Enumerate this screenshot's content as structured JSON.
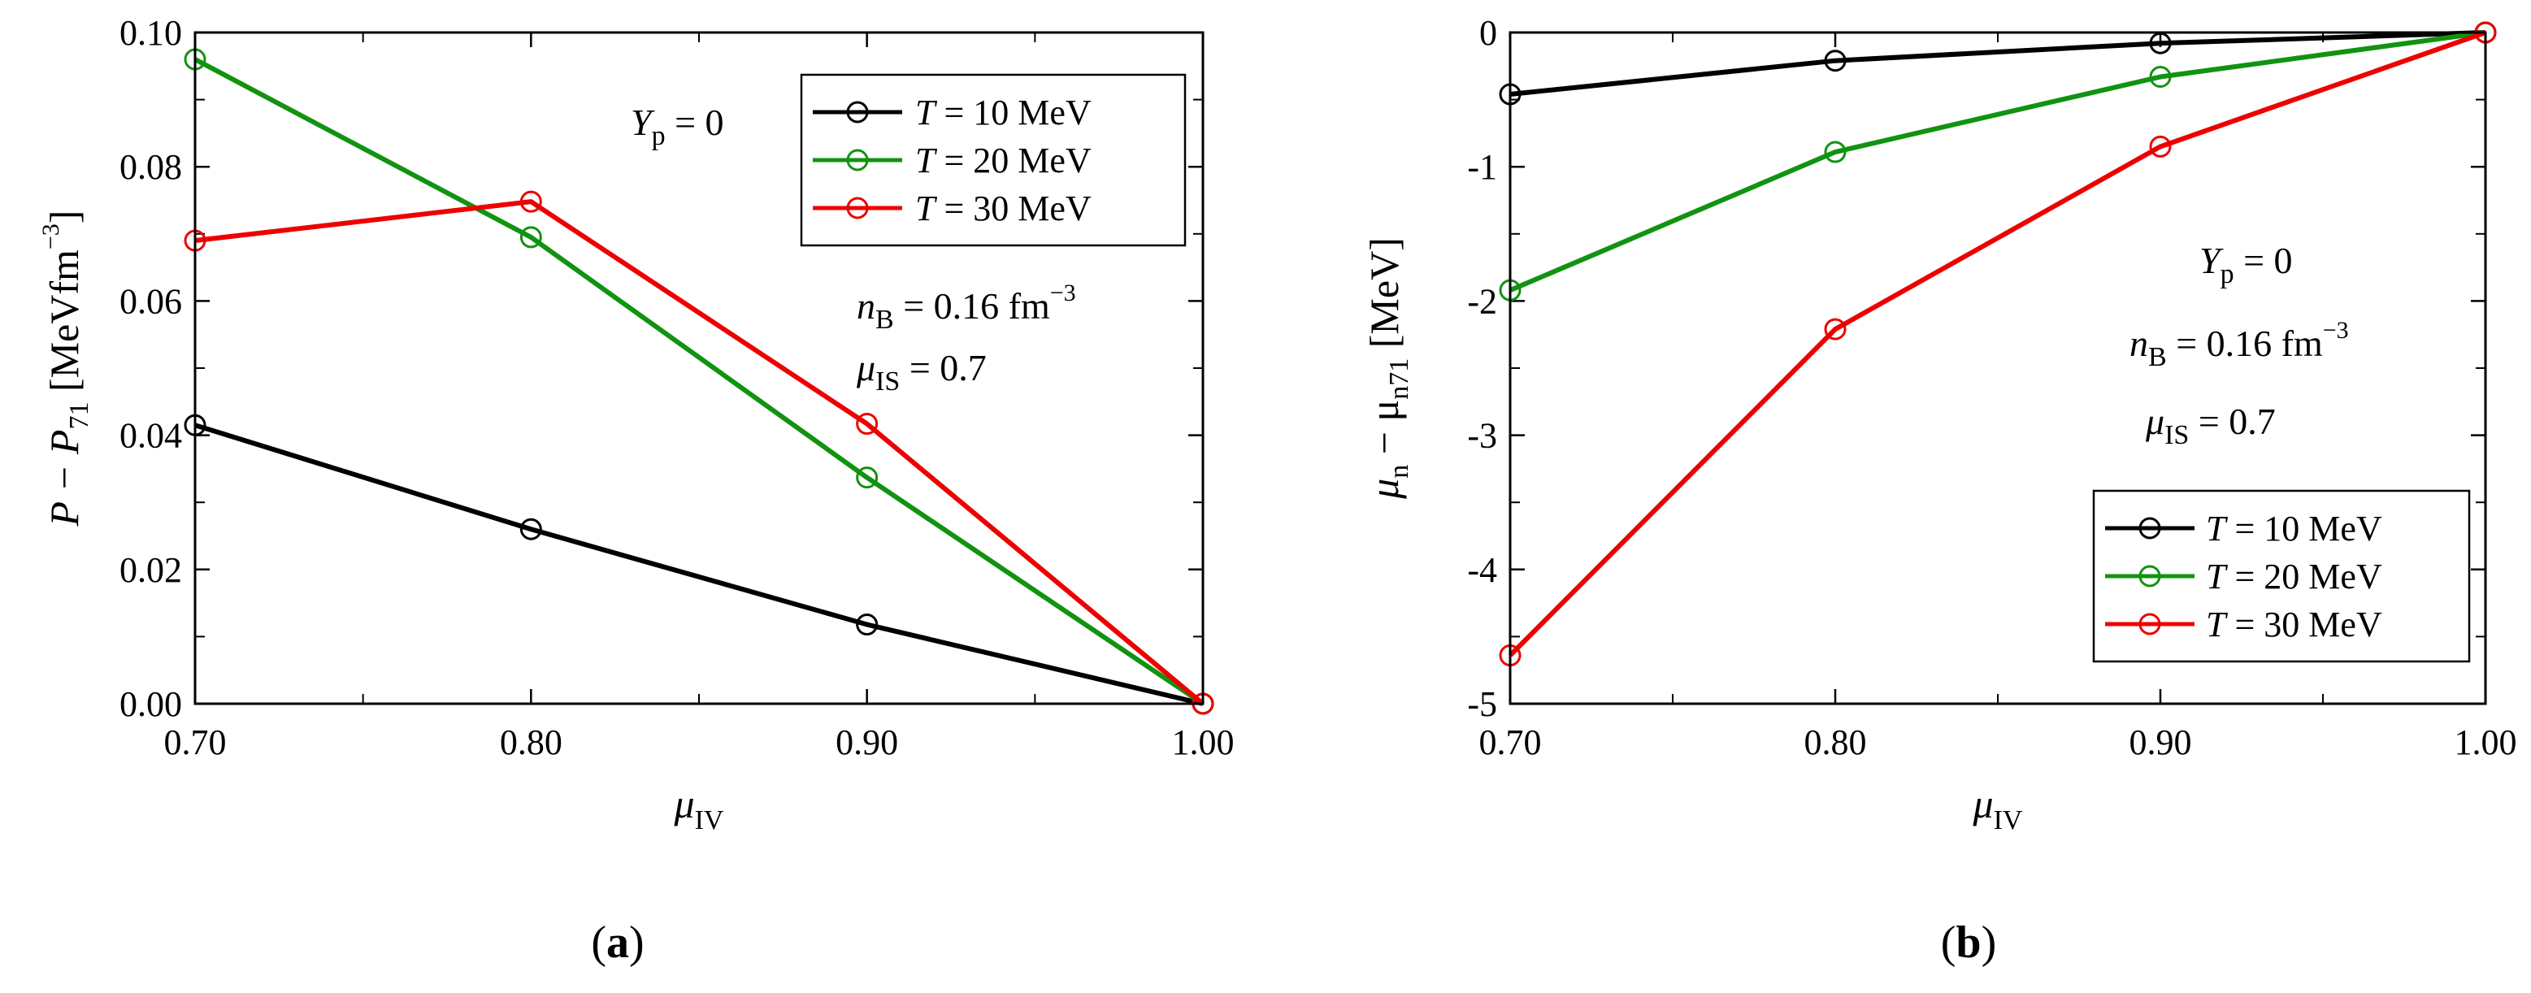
{
  "chart_data": [
    {
      "type": "line",
      "panel": "a",
      "caption": "a",
      "x": [
        0.7,
        0.8,
        0.9,
        1.0
      ],
      "xticks": [
        "0.70",
        "0.80",
        "0.90",
        "1.00"
      ],
      "xlim": [
        0.7,
        1.0
      ],
      "yticks": [
        "0.00",
        "0.02",
        "0.04",
        "0.06",
        "0.08",
        "0.10"
      ],
      "ylim": [
        0.0,
        0.1
      ],
      "xlabel": {
        "base": "μ",
        "sub": "IV"
      },
      "ylabel": {
        "p1": "P − P",
        "sub": "71",
        "p2": " [MeVfm",
        "sup": "−3",
        "p3": "]"
      },
      "series": [
        {
          "name": "T = 10 MeV",
          "T": "T",
          "rest": " = 10 MeV",
          "color": "#000000",
          "values": [
            0.0415,
            0.026,
            0.0118,
            0.0
          ]
        },
        {
          "name": "T = 20 MeV",
          "T": "T",
          "rest": " = 20 MeV",
          "color": "#119311",
          "values": [
            0.096,
            0.0695,
            0.0337,
            0.0
          ]
        },
        {
          "name": "T = 30 MeV",
          "T": "T",
          "rest": " = 30 MeV",
          "color": "#ee0000",
          "values": [
            0.069,
            0.0748,
            0.0417,
            0.0
          ]
        }
      ],
      "legend": "top-right",
      "annotations": {
        "yp": {
          "base": "Y",
          "sub": "p",
          "rest": " = 0"
        },
        "nb": {
          "base": "n",
          "sub": "B",
          "rest": " = 0.16 fm",
          "sup": "−3"
        },
        "mu": {
          "base": "μ",
          "sub": "IS",
          "rest": " = 0.7"
        }
      }
    },
    {
      "type": "line",
      "panel": "b",
      "caption": "b",
      "x": [
        0.7,
        0.8,
        0.9,
        1.0
      ],
      "xticks": [
        "0.70",
        "0.80",
        "0.90",
        "1.00"
      ],
      "xlim": [
        0.7,
        1.0
      ],
      "yticks": [
        "-5",
        "-4",
        "-3",
        "-2",
        "-1",
        "0"
      ],
      "ylim": [
        -5,
        0
      ],
      "xlabel": {
        "base": "μ",
        "sub": "IV"
      },
      "ylabel": {
        "p1": "μ",
        "sub1": "n",
        "p2": " − μ",
        "sub2": "n71",
        "p3": " [MeV]"
      },
      "series": [
        {
          "name": "T = 10 MeV",
          "T": "T",
          "rest": " = 10 MeV",
          "color": "#000000",
          "values": [
            -0.46,
            -0.21,
            -0.08,
            0.0
          ]
        },
        {
          "name": "T = 20 MeV",
          "T": "T",
          "rest": " = 20 MeV",
          "color": "#119311",
          "values": [
            -1.92,
            -0.89,
            -0.33,
            0.0
          ]
        },
        {
          "name": "T = 30 MeV",
          "T": "T",
          "rest": " = 30 MeV",
          "color": "#ee0000",
          "values": [
            -4.64,
            -2.21,
            -0.85,
            0.0
          ]
        }
      ],
      "legend": "bottom-right",
      "annotations": {
        "yp": {
          "base": "Y",
          "sub": "p",
          "rest": " = 0"
        },
        "nb": {
          "base": "n",
          "sub": "B",
          "rest": " = 0.16 fm",
          "sup": "−3"
        },
        "mu": {
          "base": "μ",
          "sub": "IS",
          "rest": " = 0.7"
        }
      }
    }
  ]
}
